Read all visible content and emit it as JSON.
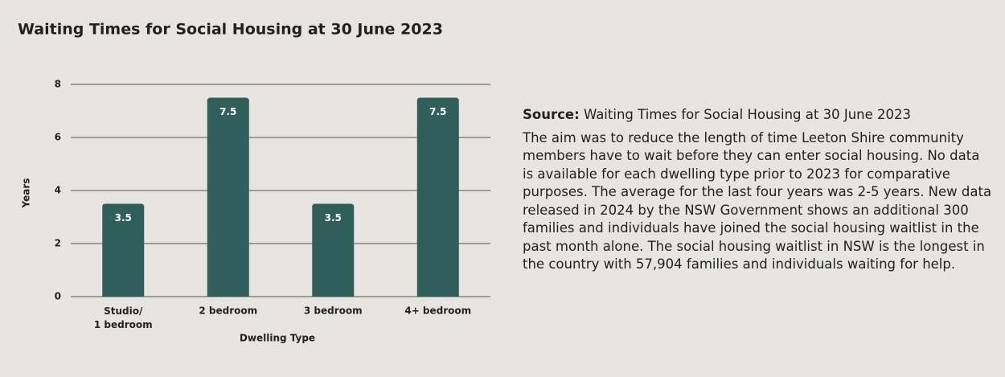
{
  "chart_data": {
    "type": "bar",
    "title": "Waiting Times for Social Housing at 30 June 2023",
    "categories": [
      "Studio/\n1 bedroom",
      "2 bedroom",
      "3 bedroom",
      "4+ bedroom"
    ],
    "values": [
      3.5,
      7.5,
      3.5,
      7.5
    ],
    "color": "#2f5e5b",
    "xlabel": "Dwelling Type",
    "ylabel": "Years",
    "ylim": [
      0,
      8
    ],
    "yticks": [
      0,
      2,
      4,
      6,
      8
    ],
    "grid": true
  },
  "source": {
    "label": "Source:",
    "text": "Waiting Times for Social Housing at 30 June 2023"
  },
  "body": "The aim was to reduce the length of time Leeton Shire community members have to wait before they can enter social housing. No data is available for each dwelling type prior to 2023 for comparative purposes. The average for the last four years was 2-5 years. New data released in 2024 by the NSW Government shows an additional 300 families and individuals have joined the social housing waitlist in the past month alone. The social housing waitlist in NSW is the longest in the country with 57,904 families and individuals waiting for help."
}
